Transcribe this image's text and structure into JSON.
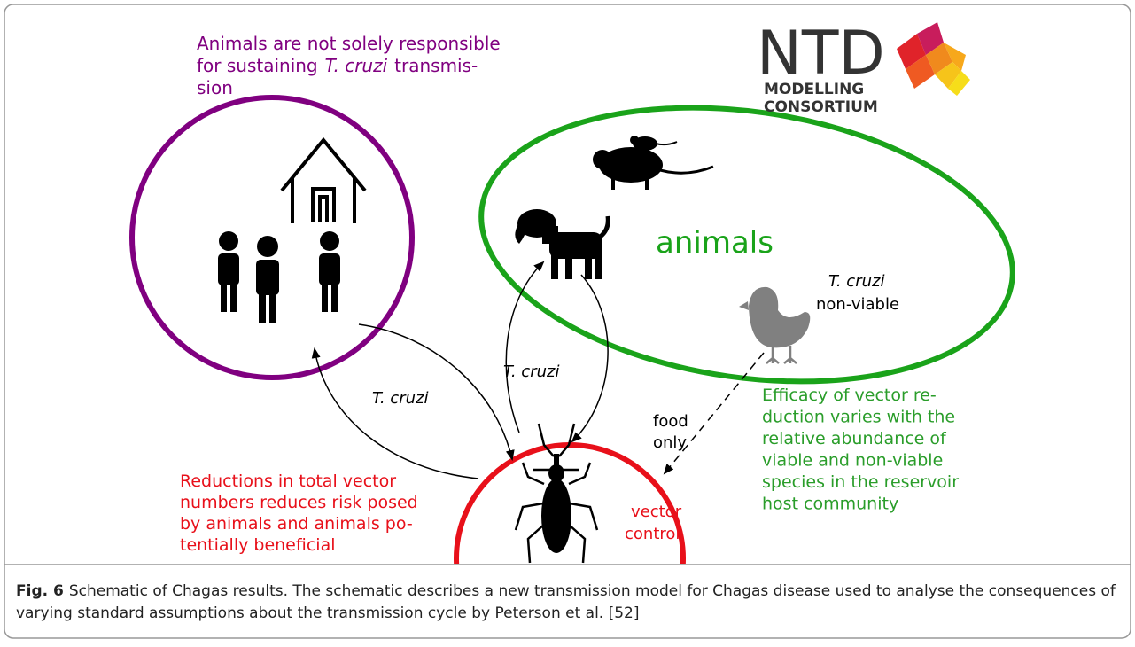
{
  "logo": {
    "acronym": "NTD",
    "line_1": "MODELLING",
    "line_2": "CONSORTIUM"
  },
  "humans_note": {
    "line_1": "Animals are not solely responsible",
    "line_2_before": "for sustaining",
    "line_2_italic": "T. cruzi",
    "line_2_after": "transmis-",
    "line_3": "sion"
  },
  "animals_label": "animals",
  "non_viable_label": {
    "italic": "T. cruzi",
    "text": "non-viable"
  },
  "arrow_labels": {
    "humans_to_vector": "T. cruzi",
    "vector_to_animals": "T. cruzi",
    "food_line_1": "food",
    "food_line_2": "only"
  },
  "vector_label": {
    "line_1": "vector",
    "line_2": "control"
  },
  "vector_note": {
    "lines": [
      "Reductions in total vector",
      "numbers reduces risk posed",
      "by animals and animals po-",
      "tentially beneficial"
    ]
  },
  "animals_note": {
    "lines": [
      "Efficacy of vector re-",
      "duction varies with the",
      "relative abundance of",
      "viable and non-viable",
      "species in the reservoir",
      "host community"
    ]
  },
  "caption": {
    "label": "Fig. 6",
    "line_1": "Schematic of Chagas results. The schematic describes a new transmission model for Chagas disease used to analyse the consequences of",
    "line_2": "varying standard assumptions about the transmission cycle by Peterson et al. [52]"
  }
}
